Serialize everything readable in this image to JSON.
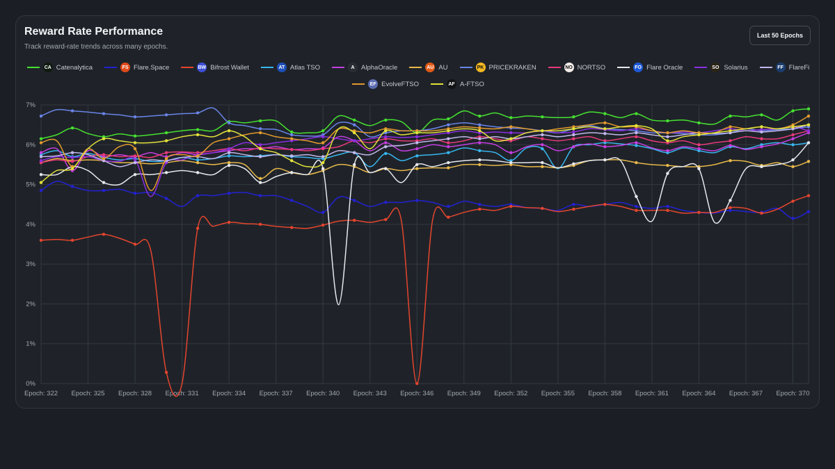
{
  "header": {
    "title": "Reward Rate Performance",
    "subtitle": "Track reward-rate trends across many epochs.",
    "range_button": "Last 50 Epochs"
  },
  "chart_data": {
    "type": "line",
    "title": "Reward Rate Performance",
    "ylim": [
      0,
      7
    ],
    "y_ticks": [
      "0%",
      "1%",
      "2%",
      "3%",
      "4%",
      "5%",
      "6%",
      "7%"
    ],
    "grid": true,
    "legend_position": "top-center",
    "x": [
      "Epoch: 322",
      "Epoch: 323",
      "Epoch: 324",
      "Epoch: 325",
      "Epoch: 326",
      "Epoch: 327",
      "Epoch: 328",
      "Epoch: 329",
      "Epoch: 330",
      "Epoch: 331",
      "Epoch: 332",
      "Epoch: 333",
      "Epoch: 334",
      "Epoch: 335",
      "Epoch: 336",
      "Epoch: 337",
      "Epoch: 338",
      "Epoch: 339",
      "Epoch: 340",
      "Epoch: 341",
      "Epoch: 342",
      "Epoch: 343",
      "Epoch: 344",
      "Epoch: 345",
      "Epoch: 346",
      "Epoch: 347",
      "Epoch: 348",
      "Epoch: 349",
      "Epoch: 350",
      "Epoch: 351",
      "Epoch: 352",
      "Epoch: 353",
      "Epoch: 354",
      "Epoch: 355",
      "Epoch: 356",
      "Epoch: 357",
      "Epoch: 358",
      "Epoch: 359",
      "Epoch: 360",
      "Epoch: 361",
      "Epoch: 362",
      "Epoch: 363",
      "Epoch: 364",
      "Epoch: 365",
      "Epoch: 366",
      "Epoch: 367",
      "Epoch: 368",
      "Epoch: 369",
      "Epoch: 370",
      "Epoch: 371"
    ],
    "x_tick_labels": [
      "Epoch: 322",
      "Epoch: 325",
      "Epoch: 328",
      "Epoch: 331",
      "Epoch: 334",
      "Epoch: 337",
      "Epoch: 340",
      "Epoch: 343",
      "Epoch: 346",
      "Epoch: 349",
      "Epoch: 352",
      "Epoch: 355",
      "Epoch: 358",
      "Epoch: 361",
      "Epoch: 364",
      "Epoch: 367",
      "Epoch: 370"
    ],
    "series": [
      {
        "name": "Catenalytica",
        "color": "#46e130",
        "logo": "CA",
        "logo_bg": "#101a10",
        "values": [
          6.15,
          6.25,
          6.42,
          6.28,
          6.2,
          6.27,
          6.22,
          6.25,
          6.3,
          6.35,
          6.38,
          6.35,
          6.58,
          6.55,
          6.6,
          6.6,
          6.32,
          6.3,
          6.35,
          6.72,
          6.62,
          6.48,
          6.62,
          6.58,
          6.3,
          6.62,
          6.65,
          6.85,
          6.72,
          6.8,
          6.68,
          6.72,
          6.7,
          6.68,
          6.7,
          6.82,
          6.78,
          6.68,
          6.78,
          6.62,
          6.6,
          6.62,
          6.55,
          6.52,
          6.72,
          6.7,
          6.75,
          6.62,
          6.85,
          6.9
        ]
      },
      {
        "name": "Flare.Space",
        "color": "#2321d4",
        "logo": "FS",
        "logo_bg": "#e04a1a",
        "values": [
          4.85,
          5.08,
          4.95,
          4.85,
          4.85,
          4.88,
          4.78,
          4.8,
          4.65,
          4.45,
          4.72,
          4.72,
          4.78,
          4.8,
          4.72,
          4.72,
          4.6,
          4.45,
          4.3,
          4.68,
          4.6,
          4.45,
          4.55,
          4.55,
          4.6,
          4.55,
          4.45,
          4.58,
          4.5,
          4.45,
          4.5,
          4.42,
          4.4,
          4.35,
          4.5,
          4.45,
          4.5,
          4.55,
          4.45,
          4.4,
          4.45,
          4.35,
          4.3,
          4.28,
          4.35,
          4.32,
          4.3,
          4.4,
          4.15,
          4.32
        ]
      },
      {
        "name": "Bifrost Wallet",
        "color": "#e5452e",
        "logo": "BW",
        "logo_bg": "#3b4fd6",
        "values": [
          3.6,
          3.62,
          3.6,
          3.68,
          3.75,
          3.65,
          3.5,
          3.35,
          0.28,
          0.0,
          3.9,
          3.95,
          4.05,
          4.02,
          4.0,
          3.95,
          3.92,
          3.9,
          3.98,
          4.08,
          4.1,
          4.05,
          4.12,
          4.1,
          0.0,
          4.12,
          4.18,
          4.3,
          4.38,
          4.35,
          4.45,
          4.42,
          4.4,
          4.32,
          4.38,
          4.45,
          4.5,
          4.45,
          4.35,
          4.35,
          4.35,
          4.28,
          4.3,
          4.3,
          4.42,
          4.4,
          4.28,
          4.38,
          4.58,
          4.72
        ]
      },
      {
        "name": "Atlas TSO",
        "color": "#38b6f0",
        "logo": "AT",
        "logo_bg": "#1d4fb8",
        "values": [
          5.75,
          5.85,
          5.7,
          5.78,
          5.68,
          5.62,
          5.65,
          5.58,
          5.6,
          5.68,
          5.62,
          5.65,
          5.72,
          5.7,
          5.72,
          5.75,
          5.7,
          5.68,
          5.65,
          5.75,
          5.8,
          5.45,
          5.78,
          5.6,
          5.72,
          5.75,
          5.8,
          5.92,
          5.85,
          5.8,
          5.6,
          5.92,
          5.9,
          5.4,
          5.95,
          6.0,
          6.05,
          6.02,
          5.98,
          5.9,
          5.8,
          5.92,
          5.85,
          5.8,
          5.95,
          5.9,
          6.0,
          6.05,
          6.0,
          6.05
        ]
      },
      {
        "name": "AlphaOracle",
        "color": "#c53ee0",
        "logo": "A",
        "logo_bg": "#2a2d33",
        "values": [
          5.8,
          5.9,
          5.35,
          5.85,
          5.7,
          5.75,
          5.7,
          5.8,
          5.7,
          5.8,
          5.75,
          5.8,
          5.85,
          5.9,
          5.9,
          5.95,
          5.88,
          5.9,
          5.92,
          6.2,
          6.1,
          5.85,
          6.05,
          5.85,
          5.9,
          6.0,
          5.95,
          6.0,
          6.05,
          6.0,
          5.8,
          5.95,
          6.0,
          5.85,
          5.95,
          6.02,
          5.95,
          5.98,
          6.05,
          5.92,
          5.85,
          5.95,
          5.9,
          5.85,
          5.98,
          5.88,
          5.95,
          6.02,
          6.15,
          6.3
        ]
      },
      {
        "name": "AU",
        "color": "#e8b84a",
        "logo": "AU",
        "logo_bg": "#e25a16",
        "values": [
          5.55,
          5.65,
          5.6,
          5.62,
          5.6,
          5.55,
          5.55,
          5.52,
          5.55,
          5.6,
          5.55,
          5.5,
          5.55,
          5.5,
          5.15,
          5.4,
          5.3,
          5.25,
          5.35,
          5.5,
          5.45,
          5.3,
          5.4,
          5.35,
          5.4,
          5.42,
          5.42,
          5.5,
          5.5,
          5.48,
          5.5,
          5.45,
          5.45,
          5.42,
          5.48,
          5.6,
          5.62,
          5.62,
          5.55,
          5.5,
          5.48,
          5.45,
          5.45,
          5.5,
          5.6,
          5.58,
          5.48,
          5.55,
          5.45,
          5.58
        ]
      },
      {
        "name": "PRICEKRAKEN",
        "color": "#6a84e8",
        "logo": "PK",
        "logo_bg": "#f2b822",
        "values": [
          6.72,
          6.88,
          6.85,
          6.82,
          6.78,
          6.75,
          6.7,
          6.72,
          6.75,
          6.78,
          6.8,
          6.92,
          6.55,
          6.48,
          6.4,
          6.38,
          6.25,
          6.22,
          6.25,
          6.55,
          6.5,
          6.2,
          6.3,
          6.35,
          6.35,
          6.4,
          6.5,
          6.55,
          6.5,
          6.45,
          6.42,
          6.4,
          6.35,
          6.3,
          6.4,
          6.48,
          6.4,
          6.38,
          6.35,
          6.3,
          6.3,
          6.28,
          6.25,
          6.25,
          6.3,
          6.4,
          6.35,
          6.38,
          6.4,
          6.45
        ]
      },
      {
        "name": "NORTSO",
        "color": "#e8397a",
        "logo": "NO",
        "logo_bg": "#f3ece9",
        "values": [
          5.55,
          5.62,
          5.58,
          5.7,
          5.75,
          5.7,
          5.72,
          5.68,
          5.8,
          5.82,
          5.8,
          5.85,
          5.9,
          5.85,
          5.92,
          5.9,
          5.88,
          5.85,
          5.9,
          5.95,
          6.1,
          6.05,
          6.15,
          6.1,
          6.1,
          6.15,
          6.05,
          6.1,
          6.2,
          6.15,
          6.1,
          6.2,
          6.15,
          6.1,
          6.15,
          6.2,
          6.1,
          6.15,
          6.2,
          6.1,
          6.05,
          6.1,
          6.0,
          6.05,
          6.1,
          6.2,
          6.15,
          6.15,
          6.25,
          6.35
        ]
      },
      {
        "name": "Flare Oracle",
        "color": "#e6e8ec",
        "logo": "FO",
        "logo_bg": "#1e58d8",
        "values": [
          5.25,
          5.25,
          5.45,
          5.35,
          5.05,
          5.0,
          5.25,
          5.25,
          5.3,
          5.35,
          5.3,
          5.25,
          5.48,
          5.4,
          5.05,
          5.2,
          5.3,
          5.25,
          5.4,
          1.98,
          5.5,
          5.3,
          5.4,
          5.05,
          5.5,
          5.45,
          5.55,
          5.6,
          5.62,
          5.6,
          5.55,
          5.55,
          5.55,
          5.42,
          5.52,
          5.6,
          5.62,
          5.6,
          4.7,
          4.08,
          5.28,
          5.45,
          5.4,
          4.05,
          4.6,
          5.4,
          5.45,
          5.5,
          5.62,
          6.05
        ]
      },
      {
        "name": "Solarius",
        "color": "#8b2ee0",
        "logo": "SO",
        "logo_bg": "#2a2416",
        "values": [
          5.6,
          5.7,
          5.68,
          5.7,
          5.6,
          5.58,
          5.62,
          4.7,
          5.55,
          5.62,
          5.75,
          5.8,
          5.9,
          6.05,
          6.0,
          6.05,
          6.1,
          6.15,
          6.2,
          6.15,
          6.1,
          6.15,
          6.2,
          6.18,
          6.2,
          6.25,
          6.3,
          6.35,
          6.3,
          6.32,
          6.3,
          6.3,
          6.35,
          6.3,
          6.32,
          6.4,
          6.38,
          6.35,
          6.4,
          6.35,
          6.3,
          6.32,
          6.3,
          6.35,
          6.4,
          6.35,
          6.38,
          6.4,
          6.45,
          6.35
        ]
      },
      {
        "name": "FlareFi",
        "color": "#c2b8ec",
        "logo": "FF",
        "logo_bg": "#1b3d6e",
        "values": [
          5.7,
          5.72,
          5.8,
          5.75,
          5.6,
          5.45,
          5.55,
          5.62,
          5.6,
          5.68,
          5.7,
          5.65,
          5.8,
          5.75,
          5.7,
          5.75,
          5.72,
          5.75,
          5.7,
          5.85,
          5.8,
          5.75,
          5.95,
          5.98,
          6.05,
          6.1,
          6.15,
          6.2,
          6.15,
          6.2,
          6.15,
          6.2,
          6.25,
          6.2,
          6.25,
          6.3,
          6.28,
          6.25,
          6.3,
          6.25,
          6.2,
          6.25,
          6.3,
          6.28,
          6.3,
          6.35,
          6.32,
          6.35,
          6.4,
          6.5
        ]
      },
      {
        "name": "EvolveFTSO",
        "color": "#e39a2e",
        "logo": "EF",
        "logo_bg": "#5a6bb0",
        "values": [
          6.05,
          6.1,
          5.45,
          5.9,
          5.65,
          5.95,
          5.9,
          4.85,
          5.65,
          5.75,
          5.72,
          6.05,
          6.15,
          6.25,
          6.3,
          6.2,
          6.15,
          6.1,
          6.05,
          6.4,
          6.35,
          6.3,
          6.4,
          6.35,
          6.35,
          6.35,
          6.4,
          6.45,
          6.42,
          6.4,
          6.45,
          6.4,
          6.35,
          6.4,
          6.45,
          6.5,
          6.55,
          6.45,
          6.45,
          6.35,
          6.3,
          6.35,
          6.3,
          6.3,
          6.45,
          6.4,
          6.45,
          6.4,
          6.5,
          6.72
        ]
      },
      {
        "name": "A-FTSO",
        "color": "#e3e23a",
        "logo": "AF",
        "logo_bg": "#111214",
        "values": [
          5.05,
          5.35,
          5.4,
          5.9,
          6.15,
          6.1,
          6.05,
          6.05,
          6.1,
          6.2,
          6.25,
          6.2,
          6.35,
          6.2,
          5.9,
          5.8,
          5.6,
          5.45,
          5.55,
          6.4,
          6.3,
          5.9,
          6.35,
          6.25,
          6.3,
          6.3,
          6.35,
          6.4,
          6.35,
          6.1,
          6.15,
          6.3,
          6.35,
          6.35,
          6.4,
          6.45,
          6.4,
          6.45,
          6.48,
          6.4,
          6.1,
          6.2,
          6.25,
          6.3,
          6.35,
          6.4,
          6.45,
          6.4,
          6.45,
          6.5
        ]
      }
    ]
  }
}
